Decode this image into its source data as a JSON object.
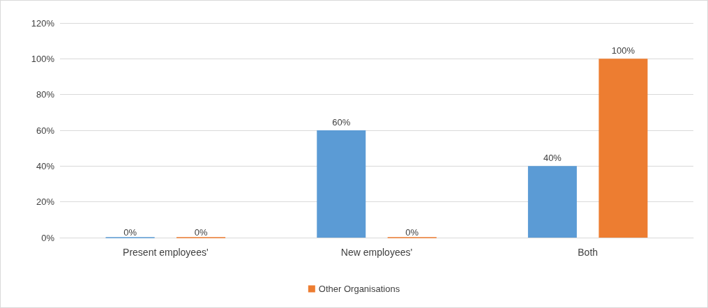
{
  "chart_data": {
    "type": "bar",
    "categories": [
      "Present employees'",
      "New employees'",
      "Both"
    ],
    "series": [
      {
        "color": "#5b9bd5",
        "values": [
          0,
          60,
          40
        ],
        "value_labels": [
          "0%",
          "60%",
          "40%"
        ]
      },
      {
        "name": "Other Organisations",
        "color": "#ed7d31",
        "values": [
          0,
          0,
          100
        ],
        "value_labels": [
          "0%",
          "0%",
          "100%"
        ]
      }
    ],
    "ylim": [
      0,
      120
    ],
    "yticks": [
      {
        "value": 0,
        "label": "0%"
      },
      {
        "value": 20,
        "label": "20%"
      },
      {
        "value": 40,
        "label": "40%"
      },
      {
        "value": 60,
        "label": "60%"
      },
      {
        "value": 80,
        "label": "80%"
      },
      {
        "value": 100,
        "label": "100%"
      },
      {
        "value": 120,
        "label": "120%"
      }
    ],
    "grid": "y",
    "legend": "bottom"
  }
}
